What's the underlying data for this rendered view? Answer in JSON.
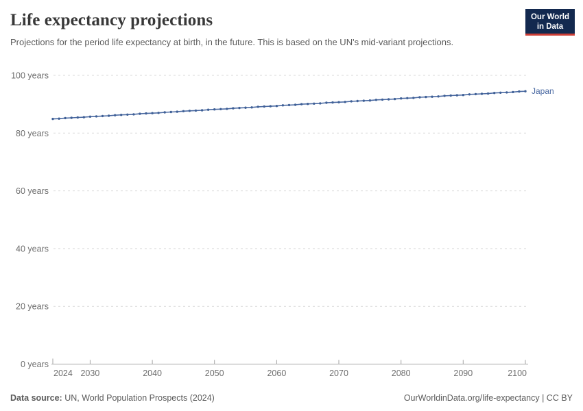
{
  "header": {
    "title": "Life expectancy projections",
    "subtitle": "Projections for the period life expectancy at birth, in the future. This is based on the UN's mid-variant projections.",
    "logo": {
      "line1": "Our World",
      "line2": "in Data"
    }
  },
  "chart_data": {
    "type": "line",
    "title": "Life expectancy projections",
    "x": [
      2024,
      2025,
      2026,
      2027,
      2028,
      2029,
      2030,
      2031,
      2032,
      2033,
      2034,
      2035,
      2036,
      2037,
      2038,
      2039,
      2040,
      2041,
      2042,
      2043,
      2044,
      2045,
      2046,
      2047,
      2048,
      2049,
      2050,
      2051,
      2052,
      2053,
      2054,
      2055,
      2056,
      2057,
      2058,
      2059,
      2060,
      2061,
      2062,
      2063,
      2064,
      2065,
      2066,
      2067,
      2068,
      2069,
      2070,
      2071,
      2072,
      2073,
      2074,
      2075,
      2076,
      2077,
      2078,
      2079,
      2080,
      2081,
      2082,
      2083,
      2084,
      2085,
      2086,
      2087,
      2088,
      2089,
      2090,
      2091,
      2092,
      2093,
      2094,
      2095,
      2096,
      2097,
      2098,
      2099,
      2100
    ],
    "series": [
      {
        "name": "Japan",
        "values": [
          84.9,
          85.0,
          85.2,
          85.3,
          85.4,
          85.5,
          85.7,
          85.8,
          85.9,
          86.0,
          86.2,
          86.3,
          86.4,
          86.5,
          86.7,
          86.8,
          86.9,
          87.0,
          87.2,
          87.3,
          87.4,
          87.6,
          87.7,
          87.8,
          87.9,
          88.1,
          88.2,
          88.3,
          88.4,
          88.6,
          88.7,
          88.8,
          88.9,
          89.1,
          89.2,
          89.3,
          89.4,
          89.6,
          89.7,
          89.8,
          90.0,
          90.1,
          90.2,
          90.3,
          90.5,
          90.6,
          90.7,
          90.8,
          91.0,
          91.1,
          91.2,
          91.3,
          91.5,
          91.6,
          91.7,
          91.8,
          92.0,
          92.1,
          92.2,
          92.4,
          92.5,
          92.6,
          92.7,
          92.9,
          93.0,
          93.1,
          93.2,
          93.4,
          93.5,
          93.6,
          93.7,
          93.9,
          94.0,
          94.1,
          94.2,
          94.4,
          94.5
        ]
      }
    ],
    "xlabel": "",
    "ylabel": "",
    "ylim": [
      0,
      100
    ],
    "yticks": [
      0,
      20,
      40,
      60,
      80,
      100
    ],
    "ytick_suffix": " years",
    "xticks": [
      2024,
      2030,
      2040,
      2050,
      2060,
      2070,
      2080,
      2090,
      2100
    ],
    "grid": "horizontal-dashed",
    "legend": "end-of-line-label"
  },
  "footer": {
    "source_label": "Data source:",
    "source_value": "UN, World Population Prospects (2024)",
    "credit": "OurWorldinData.org/life-expectancy | CC BY"
  },
  "colors": {
    "line": "#4a69a2",
    "line_dot": "#3f6096",
    "series_label": "#4a69a2",
    "grid": "#d9d9d9",
    "axis": "#a3a3a3",
    "tick_text": "#6e6e6e",
    "title": "#383838",
    "subtitle": "#5b5b5b",
    "logo_bg": "#13294f",
    "logo_red": "#cc3e36"
  }
}
